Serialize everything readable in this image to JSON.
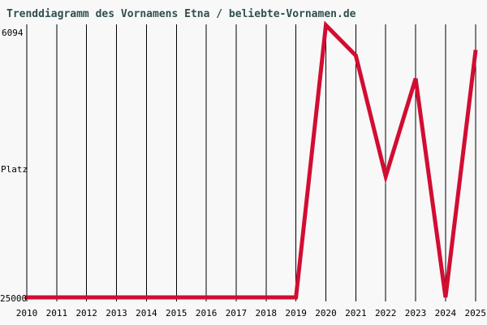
{
  "header": {
    "title": "Trenddiagramm des Vornamens Etna / beliebte-Vornamen.de"
  },
  "axis": {
    "y_max_label": "6094",
    "y_title": "Platz",
    "y_min_label": "25000"
  },
  "colors": {
    "background": "#F8F8F8",
    "title": "#2F4F4F",
    "grid": "#000000",
    "label": "#000000",
    "line": "#D20D32"
  },
  "chart_data": {
    "type": "line",
    "title": "Trenddiagramm des Vornamens Etna / beliebte-Vornamen.de",
    "xlabel": "",
    "ylabel": "Platz",
    "y_axis_inverted": true,
    "ylim": [
      6094,
      25000
    ],
    "y_tick_labels": [
      "6094",
      "25000"
    ],
    "grid": "vertical-only",
    "legend": "none",
    "categories": [
      "2010",
      "2011",
      "2012",
      "2013",
      "2014",
      "2015",
      "2016",
      "2017",
      "2018",
      "2019",
      "2020",
      "2021",
      "2022",
      "2023",
      "2024",
      "2025"
    ],
    "series": [
      {
        "name": "Etna",
        "color": "#D20D32",
        "values": [
          25000,
          25000,
          25000,
          25000,
          25000,
          25000,
          25000,
          25000,
          25000,
          25000,
          6094,
          8200,
          16600,
          9800,
          25000,
          7950
        ]
      }
    ]
  }
}
